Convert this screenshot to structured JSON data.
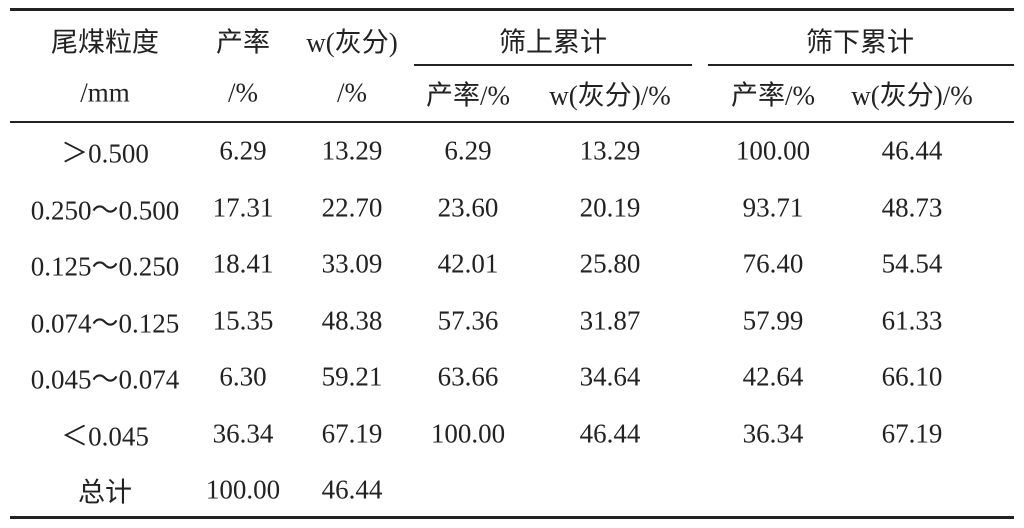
{
  "table": {
    "header_top": [
      "尾煤粒度",
      "产率",
      "w(灰分)",
      "筛上累计",
      "筛下累计"
    ],
    "header_bottom": [
      "/mm",
      "/%",
      "/%",
      "产率/%",
      "w(灰分)/%",
      "产率/%",
      "w(灰分)/%"
    ],
    "rows": [
      [
        "＞0.500",
        "6.29",
        "13.29",
        "6.29",
        "13.29",
        "100.00",
        "46.44"
      ],
      [
        "0.250～0.500",
        "17.31",
        "22.70",
        "23.60",
        "20.19",
        "93.71",
        "48.73"
      ],
      [
        "0.125～0.250",
        "18.41",
        "33.09",
        "42.01",
        "25.80",
        "76.40",
        "54.54"
      ],
      [
        "0.074～0.125",
        "15.35",
        "48.38",
        "57.36",
        "31.87",
        "57.99",
        "61.33"
      ],
      [
        "0.045～0.074",
        "6.30",
        "59.21",
        "63.66",
        "34.64",
        "42.64",
        "66.10"
      ],
      [
        "＜0.045",
        "36.34",
        "67.19",
        "100.00",
        "46.44",
        "36.34",
        "67.19"
      ],
      [
        "总计",
        "100.00",
        "46.44"
      ]
    ]
  }
}
